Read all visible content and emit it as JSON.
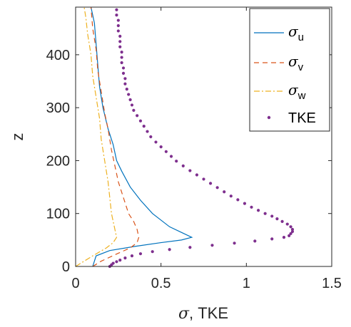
{
  "chart_data": {
    "type": "line",
    "xlabel_symbol": "σ",
    "xlabel_text": ", TKE",
    "ylabel": "z",
    "xlim": [
      0,
      1.5
    ],
    "ylim": [
      0,
      490
    ],
    "xticks": [
      0,
      0.5,
      1,
      1.5
    ],
    "xtick_labels": [
      "0",
      "0.5",
      "1",
      "1.5"
    ],
    "yticks": [
      0,
      100,
      200,
      300,
      400
    ],
    "ytick_labels": [
      "0",
      "100",
      "200",
      "300",
      "400"
    ],
    "legend_position": "top-right",
    "grid": false,
    "series": [
      {
        "name_symbol": "σ",
        "name_sub": "u",
        "style": "solid",
        "color": "#0072BD",
        "points": [
          [
            0.1,
            0
          ],
          [
            0.11,
            10
          ],
          [
            0.12,
            20
          ],
          [
            0.2,
            30
          ],
          [
            0.35,
            38
          ],
          [
            0.5,
            45
          ],
          [
            0.62,
            50
          ],
          [
            0.68,
            55
          ],
          [
            0.55,
            75
          ],
          [
            0.45,
            100
          ],
          [
            0.38,
            125
          ],
          [
            0.32,
            150
          ],
          [
            0.27,
            180
          ],
          [
            0.24,
            200
          ],
          [
            0.22,
            230
          ],
          [
            0.19,
            260
          ],
          [
            0.16,
            300
          ],
          [
            0.14,
            340
          ],
          [
            0.13,
            380
          ],
          [
            0.12,
            420
          ],
          [
            0.11,
            460
          ],
          [
            0.09,
            490
          ]
        ]
      },
      {
        "name_symbol": "σ",
        "name_sub": "v",
        "style": "dashed",
        "color": "#D95319",
        "points": [
          [
            0.1,
            0
          ],
          [
            0.15,
            10
          ],
          [
            0.25,
            25
          ],
          [
            0.32,
            35
          ],
          [
            0.36,
            45
          ],
          [
            0.37,
            55
          ],
          [
            0.36,
            70
          ],
          [
            0.34,
            85
          ],
          [
            0.31,
            100
          ],
          [
            0.28,
            130
          ],
          [
            0.25,
            160
          ],
          [
            0.23,
            190
          ],
          [
            0.21,
            220
          ],
          [
            0.19,
            260
          ],
          [
            0.17,
            290
          ],
          [
            0.15,
            330
          ],
          [
            0.13,
            370
          ],
          [
            0.12,
            410
          ],
          [
            0.1,
            450
          ],
          [
            0.09,
            490
          ]
        ]
      },
      {
        "name_symbol": "σ",
        "name_sub": "w",
        "style": "dashdot",
        "color": "#EDB120",
        "points": [
          [
            0.0,
            0
          ],
          [
            0.04,
            8
          ],
          [
            0.1,
            20
          ],
          [
            0.18,
            35
          ],
          [
            0.22,
            45
          ],
          [
            0.24,
            55
          ],
          [
            0.23,
            70
          ],
          [
            0.22,
            85
          ],
          [
            0.21,
            100
          ],
          [
            0.2,
            130
          ],
          [
            0.19,
            160
          ],
          [
            0.17,
            200
          ],
          [
            0.15,
            240
          ],
          [
            0.14,
            280
          ],
          [
            0.12,
            320
          ],
          [
            0.1,
            360
          ],
          [
            0.09,
            400
          ],
          [
            0.07,
            440
          ],
          [
            0.06,
            470
          ],
          [
            0.05,
            490
          ]
        ]
      },
      {
        "name": "TKE",
        "style": "dots",
        "color": "#7E2F8E",
        "points": [
          [
            0.2,
            0
          ],
          [
            0.21,
            3
          ],
          [
            0.22,
            6
          ],
          [
            0.24,
            9
          ],
          [
            0.26,
            12
          ],
          [
            0.29,
            16
          ],
          [
            0.33,
            20
          ],
          [
            0.38,
            24
          ],
          [
            0.45,
            28
          ],
          [
            0.55,
            32
          ],
          [
            0.67,
            36
          ],
          [
            0.8,
            40
          ],
          [
            0.93,
            44
          ],
          [
            1.05,
            48
          ],
          [
            1.15,
            52
          ],
          [
            1.22,
            55
          ],
          [
            1.25,
            58
          ],
          [
            1.26,
            62
          ],
          [
            1.27,
            66
          ],
          [
            1.27,
            70
          ],
          [
            1.26,
            75
          ],
          [
            1.24,
            80
          ],
          [
            1.21,
            85
          ],
          [
            1.18,
            90
          ],
          [
            1.15,
            95
          ],
          [
            1.11,
            100
          ],
          [
            1.07,
            106
          ],
          [
            1.03,
            112
          ],
          [
            0.99,
            119
          ],
          [
            0.95,
            126
          ],
          [
            0.91,
            133
          ],
          [
            0.87,
            141
          ],
          [
            0.83,
            149
          ],
          [
            0.79,
            157
          ],
          [
            0.75,
            165
          ],
          [
            0.71,
            173
          ],
          [
            0.67,
            181
          ],
          [
            0.63,
            190
          ],
          [
            0.59,
            199
          ],
          [
            0.56,
            208
          ],
          [
            0.53,
            217
          ],
          [
            0.5,
            226
          ],
          [
            0.47,
            235
          ],
          [
            0.44,
            245
          ],
          [
            0.42,
            255
          ],
          [
            0.4,
            265
          ],
          [
            0.38,
            275
          ],
          [
            0.36,
            285
          ],
          [
            0.34,
            295
          ],
          [
            0.33,
            305
          ],
          [
            0.32,
            315
          ],
          [
            0.31,
            325
          ],
          [
            0.3,
            335
          ],
          [
            0.29,
            345
          ],
          [
            0.29,
            355
          ],
          [
            0.28,
            365
          ],
          [
            0.28,
            375
          ],
          [
            0.27,
            385
          ],
          [
            0.27,
            395
          ],
          [
            0.27,
            405
          ],
          [
            0.26,
            415
          ],
          [
            0.26,
            425
          ],
          [
            0.26,
            435
          ],
          [
            0.25,
            445
          ],
          [
            0.25,
            455
          ],
          [
            0.25,
            465
          ],
          [
            0.24,
            475
          ],
          [
            0.24,
            485
          ]
        ]
      }
    ]
  },
  "legend": {
    "symbol": "σ",
    "u_sub": "u",
    "v_sub": "v",
    "w_sub": "w",
    "tke_label": "TKE"
  }
}
